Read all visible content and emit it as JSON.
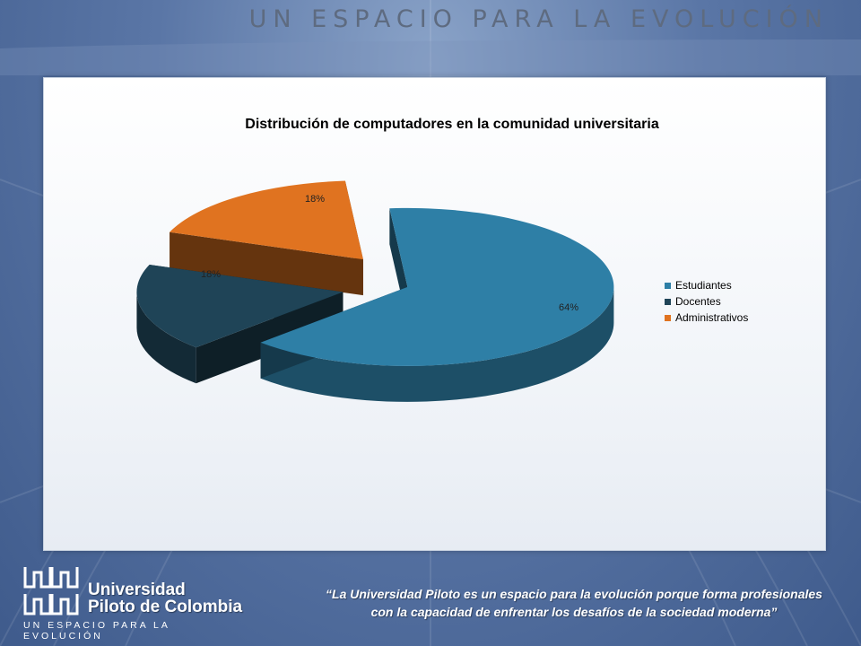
{
  "header": {
    "slogan": "UN ESPACIO PARA LA EVOLUCIÓN"
  },
  "chart_data": {
    "type": "pie",
    "title": "Distribución de computadores en la comunidad universitaria",
    "categories": [
      "Estudiantes",
      "Docentes",
      "Administrativos"
    ],
    "values": [
      64,
      18,
      18
    ],
    "data_labels": [
      "64%",
      "18%",
      "18%"
    ],
    "colors": [
      "#2e7fa6",
      "#1f4457",
      "#e07320"
    ],
    "legend_position": "right",
    "three_d": true,
    "exploded": true
  },
  "footer": {
    "university_line1": "Universidad",
    "university_line2": "Piloto de Colombia",
    "tagline": "UN ESPACIO PARA LA EVOLUCIÓN",
    "quote": "“La Universidad Piloto es un espacio para la evolución porque forma profesionales con la capacidad de enfrentar los desafíos de la sociedad moderna”"
  }
}
